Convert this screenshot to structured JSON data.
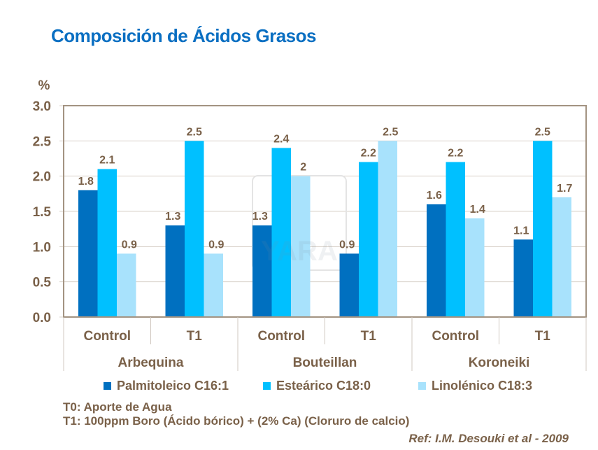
{
  "title": "Composición de Ácidos Grasos",
  "chart_data": {
    "type": "bar",
    "ylabel": "%",
    "ylim": [
      0,
      3.0
    ],
    "yticks": [
      "0.0",
      "0.5",
      "1.0",
      "1.5",
      "2.0",
      "2.5",
      "3.0"
    ],
    "grid": true,
    "categories": [
      "Control",
      "T1",
      "Control",
      "T1",
      "Control",
      "T1"
    ],
    "groups": [
      "Arbequina",
      "Bouteillan",
      "Koroneiki"
    ],
    "series": [
      {
        "name": "Palmitoleico C16:1",
        "color": "#0070c0",
        "values": [
          1.8,
          1.3,
          1.3,
          0.9,
          1.6,
          1.1
        ],
        "labels": [
          "1.8",
          "1.3",
          "1.3",
          "0.9",
          "1.6",
          "1.1"
        ]
      },
      {
        "name": "Esteárico C18:0",
        "color": "#00c0ff",
        "values": [
          2.1,
          2.5,
          2.4,
          2.2,
          2.2,
          2.5
        ],
        "labels": [
          "2.1",
          "2.5",
          "2.4",
          "2.2",
          "2.2",
          "2.5"
        ]
      },
      {
        "name": "Linolénico C18:3",
        "color": "#a8e2fc",
        "values": [
          0.9,
          0.9,
          2.0,
          2.5,
          1.4,
          1.7
        ],
        "labels": [
          "0.9",
          "0.9",
          "2",
          "2.5",
          "1.4",
          "1.7"
        ]
      }
    ],
    "legend_position": "bottom"
  },
  "watermark": "YARA",
  "notes": [
    "T0: Aporte de Agua",
    "T1: 100ppm Boro (Ácido bórico) + (2% Ca) (Cloruro de calcio)"
  ],
  "reference": "Ref: I.M. Desouki et al - 2009"
}
